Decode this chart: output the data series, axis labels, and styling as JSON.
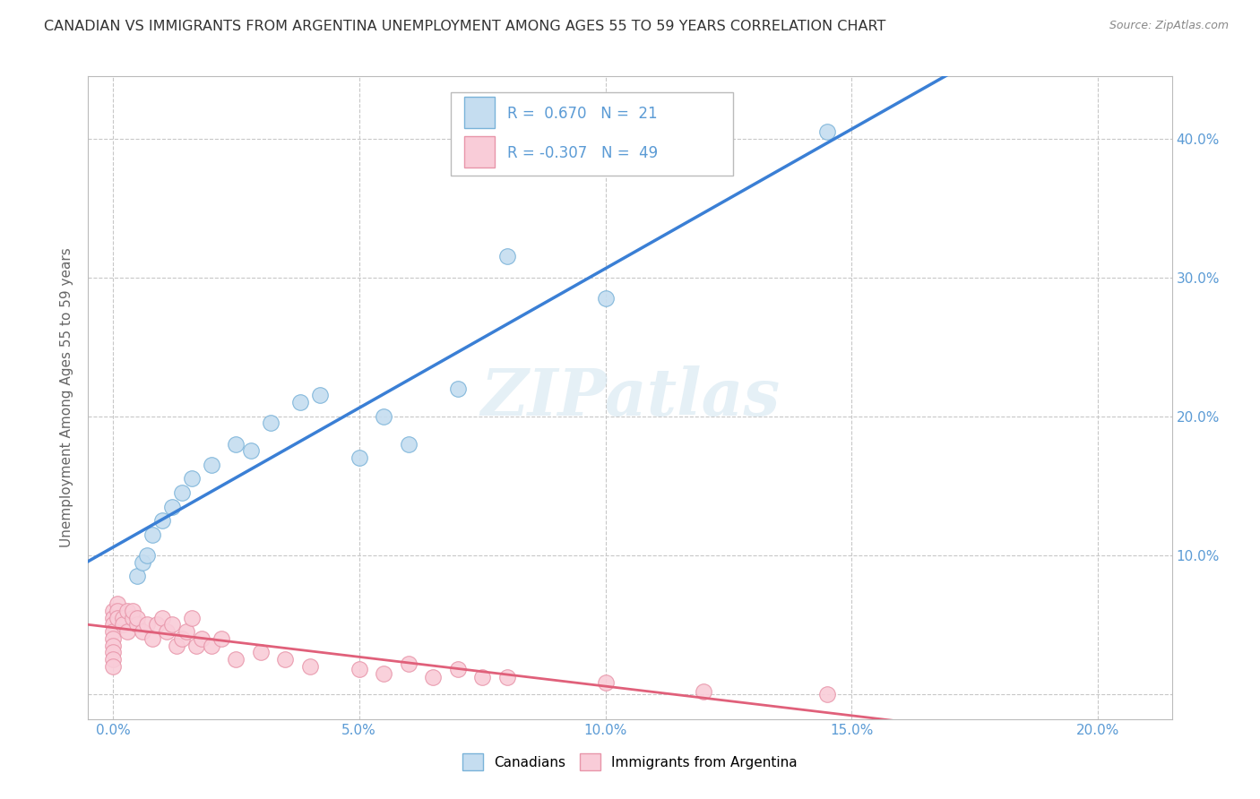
{
  "title": "CANADIAN VS IMMIGRANTS FROM ARGENTINA UNEMPLOYMENT AMONG AGES 55 TO 59 YEARS CORRELATION CHART",
  "source": "Source: ZipAtlas.com",
  "xlabel_ticks": [
    0.0,
    0.05,
    0.1,
    0.15,
    0.2
  ],
  "ylabel_ticks": [
    0.0,
    0.1,
    0.2,
    0.3,
    0.4
  ],
  "xlim": [
    -0.005,
    0.215
  ],
  "ylim": [
    -0.018,
    0.445
  ],
  "canadians_x": [
    0.005,
    0.006,
    0.007,
    0.008,
    0.01,
    0.012,
    0.014,
    0.016,
    0.02,
    0.025,
    0.028,
    0.032,
    0.038,
    0.042,
    0.05,
    0.055,
    0.06,
    0.07,
    0.08,
    0.1,
    0.145
  ],
  "canadians_y": [
    0.085,
    0.095,
    0.1,
    0.115,
    0.125,
    0.135,
    0.145,
    0.155,
    0.165,
    0.18,
    0.175,
    0.195,
    0.21,
    0.215,
    0.17,
    0.2,
    0.18,
    0.22,
    0.315,
    0.285,
    0.405
  ],
  "argentina_x": [
    0.0,
    0.0,
    0.0,
    0.0,
    0.0,
    0.0,
    0.0,
    0.0,
    0.0,
    0.001,
    0.001,
    0.001,
    0.002,
    0.002,
    0.003,
    0.003,
    0.004,
    0.004,
    0.005,
    0.005,
    0.006,
    0.007,
    0.008,
    0.009,
    0.01,
    0.011,
    0.012,
    0.013,
    0.014,
    0.015,
    0.016,
    0.017,
    0.018,
    0.02,
    0.022,
    0.025,
    0.03,
    0.035,
    0.04,
    0.05,
    0.055,
    0.06,
    0.065,
    0.07,
    0.075,
    0.08,
    0.1,
    0.12,
    0.145
  ],
  "argentina_y": [
    0.06,
    0.055,
    0.05,
    0.045,
    0.04,
    0.035,
    0.03,
    0.025,
    0.02,
    0.065,
    0.06,
    0.055,
    0.055,
    0.05,
    0.06,
    0.045,
    0.055,
    0.06,
    0.05,
    0.055,
    0.045,
    0.05,
    0.04,
    0.05,
    0.055,
    0.045,
    0.05,
    0.035,
    0.04,
    0.045,
    0.055,
    0.035,
    0.04,
    0.035,
    0.04,
    0.025,
    0.03,
    0.025,
    0.02,
    0.018,
    0.015,
    0.022,
    0.012,
    0.018,
    0.012,
    0.012,
    0.008,
    0.002,
    0.0
  ],
  "canadian_color": "#c5ddf0",
  "canadian_edge_color": "#7ab3d9",
  "argentina_color": "#f9ccd8",
  "argentina_edge_color": "#e896aa",
  "blue_line_color": "#3a7fd5",
  "pink_line_color": "#e0607a",
  "R_canadian": "0.670",
  "N_canadian": "21",
  "R_argentina": "-0.307",
  "N_argentina": "49",
  "watermark": "ZIPatlas",
  "legend_label_canadian": "Canadians",
  "legend_label_argentina": "Immigrants from Argentina",
  "title_fontsize": 11.5,
  "axis_tick_color": "#5b9bd5",
  "background_color": "#ffffff",
  "grid_color": "#c8c8c8",
  "ylabel_right_labels": [
    "",
    "10.0%",
    "20.0%",
    "30.0%",
    "40.0%"
  ],
  "xlabel_labels": [
    "0.0%",
    "5.0%",
    "10.0%",
    "15.0%",
    "20.0%"
  ],
  "ylabel_left_labels": [
    "",
    "",
    "",
    "",
    ""
  ]
}
